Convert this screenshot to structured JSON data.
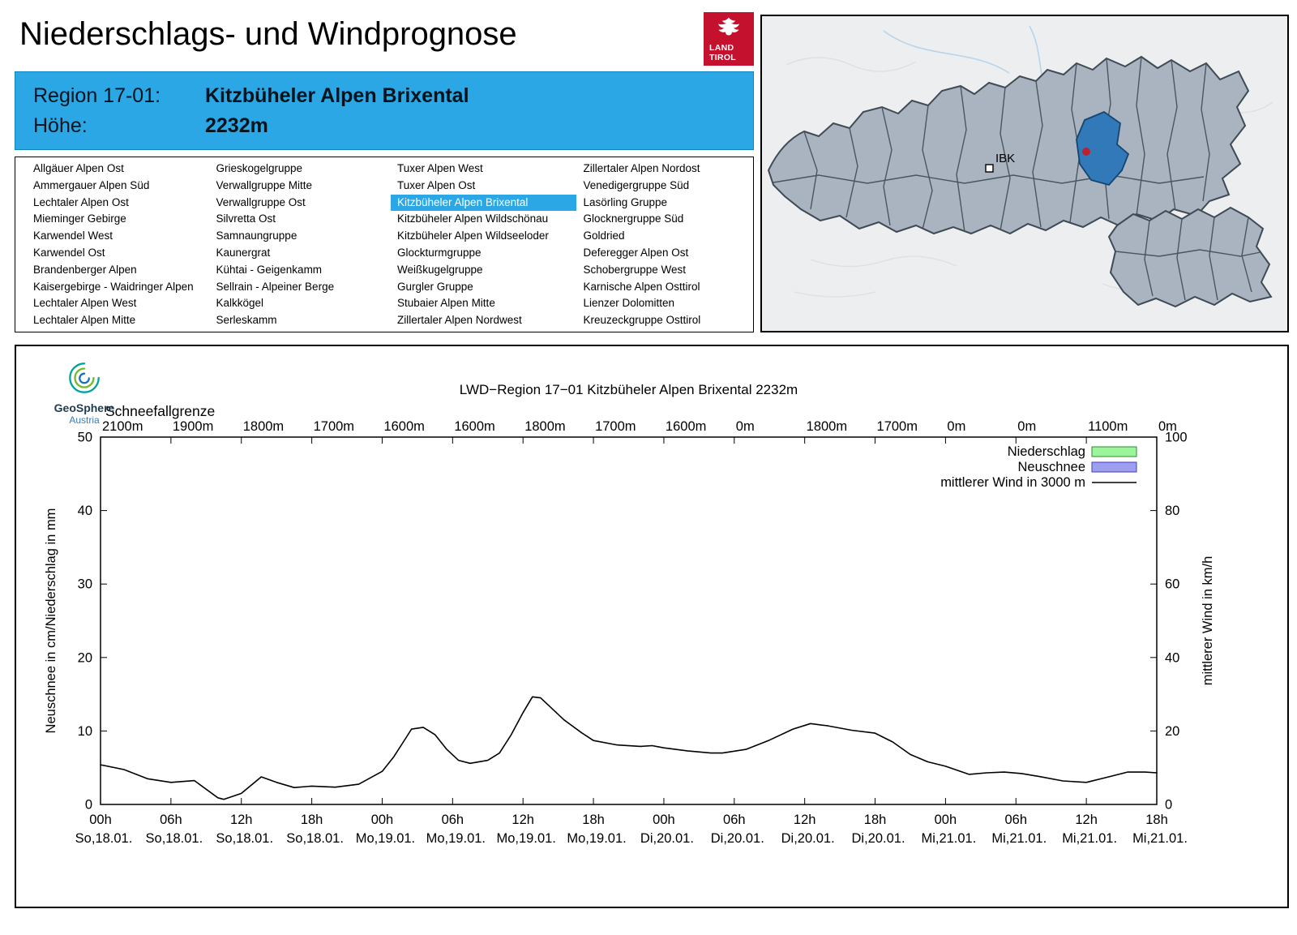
{
  "page": {
    "title": "Niederschlags- und Windprognose"
  },
  "brand": {
    "logo_line1": "LAND",
    "logo_line2": "TIROL",
    "logo_color": "#c4112e"
  },
  "region_info": {
    "region_label": "Region 17-01:",
    "region_name": "Kitzbüheler Alpen Brixental",
    "altitude_label": "Höhe:",
    "altitude_value": "2232m",
    "accent_color": "#2aa7e4"
  },
  "region_list": {
    "selected": "Kitzbüheler Alpen Brixental",
    "columns": [
      [
        "Allgäuer Alpen Ost",
        "Ammergauer Alpen Süd",
        "Lechtaler Alpen Ost",
        "Mieminger Gebirge",
        "Karwendel West",
        "Karwendel Ost",
        "Brandenberger Alpen",
        "Kaisergebirge - Waidringer Alpen",
        "Lechtaler Alpen West",
        "Lechtaler Alpen Mitte"
      ],
      [
        "Grieskogelgruppe",
        "Verwallgruppe Mitte",
        "Verwallgruppe Ost",
        "Silvretta Ost",
        "Samnaungruppe",
        "Kaunergrat",
        "Kühtai - Geigenkamm",
        "Sellrain - Alpeiner Berge",
        "Kalkkögel",
        "Serleskamm"
      ],
      [
        "Tuxer Alpen West",
        "Tuxer Alpen Ost",
        "Kitzbüheler Alpen Brixental",
        "Kitzbüheler Alpen Wildschönau",
        "Kitzbüheler Alpen Wildseeloder",
        "Glockturmgruppe",
        "Weißkugelgruppe",
        "Gurgler Gruppe",
        "Stubaier Alpen Mitte",
        "Zillertaler Alpen Nordwest"
      ],
      [
        "Zillertaler Alpen Nordost",
        "Venedigergruppe Süd",
        "Lasörling Gruppe",
        "Glocknergruppe Süd",
        "Goldried",
        "Deferegger Alpen Ost",
        "Schobergruppe West",
        "Karnische Alpen Osttirol",
        "Lienzer Dolomitten",
        "Kreuzeckgruppe Osttirol"
      ]
    ]
  },
  "map": {
    "marker_label": "IBK",
    "selected_region_color": "#3179b8",
    "marker_dot_color": "#bb2230"
  },
  "geosphere": {
    "name": "GeoSphere",
    "country": "Austria"
  },
  "chart_data": {
    "type": "line",
    "title": "LWD−Region 17−01 Kitzbüheler Alpen Brixental 2232m",
    "snowline_label": "Schneefallgrenze",
    "snowline_values": [
      "2100m",
      "1900m",
      "1800m",
      "1700m",
      "1600m",
      "1600m",
      "1800m",
      "1700m",
      "1600m",
      "0m",
      "1800m",
      "1700m",
      "0m",
      "0m",
      "1100m",
      "0m"
    ],
    "ylabel_left": "Neuschnee in cm/Niederschlag in mm",
    "ylabel_right": "mittlerer Wind in km/h",
    "ylim_left": [
      0,
      50
    ],
    "ylim_right": [
      0,
      100
    ],
    "yticks_left": [
      0,
      10,
      20,
      30,
      40,
      50
    ],
    "yticks_right": [
      0,
      20,
      40,
      60,
      80,
      100
    ],
    "xlim_hours": [
      0,
      90
    ],
    "x_ticks": [
      {
        "hour": "00h",
        "date": "So,18.01."
      },
      {
        "hour": "06h",
        "date": "So,18.01."
      },
      {
        "hour": "12h",
        "date": "So,18.01."
      },
      {
        "hour": "18h",
        "date": "So,18.01."
      },
      {
        "hour": "00h",
        "date": "Mo,19.01."
      },
      {
        "hour": "06h",
        "date": "Mo,19.01."
      },
      {
        "hour": "12h",
        "date": "Mo,19.01."
      },
      {
        "hour": "18h",
        "date": "Mo,19.01."
      },
      {
        "hour": "00h",
        "date": "Di,20.01."
      },
      {
        "hour": "06h",
        "date": "Di,20.01."
      },
      {
        "hour": "12h",
        "date": "Di,20.01."
      },
      {
        "hour": "18h",
        "date": "Di,20.01."
      },
      {
        "hour": "00h",
        "date": "Mi,21.01."
      },
      {
        "hour": "06h",
        "date": "Mi,21.01."
      },
      {
        "hour": "12h",
        "date": "Mi,21.01."
      },
      {
        "hour": "18h",
        "date": "Mi,21.01."
      }
    ],
    "legend_position": "top-right",
    "grid": false,
    "legend": [
      {
        "label": "Niederschlag",
        "swatch": "box",
        "fill": "#9cf59c",
        "stroke": "#2e8b2e"
      },
      {
        "label": "Neuschnee",
        "swatch": "box",
        "fill": "#9f9ff0",
        "stroke": "#3c3cc8"
      },
      {
        "label": "mittlerer Wind in 3000 m",
        "swatch": "line",
        "stroke": "#000000"
      }
    ],
    "series": [
      {
        "name": "Niederschlag",
        "type": "bar",
        "axis": "left",
        "unit": "mm",
        "note": "no visible bars over entire period (0 mm)"
      },
      {
        "name": "Neuschnee",
        "type": "bar",
        "axis": "left",
        "unit": "cm",
        "note": "no visible bars over entire period (0 cm)"
      },
      {
        "name": "mittlerer Wind in 3000 m",
        "type": "line",
        "axis": "right",
        "unit": "km/h",
        "x_hours": [
          0,
          2,
          4,
          6,
          8,
          10,
          10.5,
          12,
          13.7,
          15,
          16.5,
          18,
          20,
          22,
          24,
          25,
          26,
          26.5,
          27.5,
          28.5,
          29.5,
          30.5,
          31.5,
          33,
          34,
          35,
          36,
          36.8,
          37.5,
          38.5,
          39.5,
          41,
          42,
          44,
          46,
          47,
          48,
          50,
          52,
          53,
          55,
          57,
          59,
          60.5,
          62,
          64,
          66,
          67.5,
          69,
          70.5,
          72,
          74,
          75.5,
          77,
          78.5,
          80,
          82,
          84,
          86,
          87.5,
          89,
          90
        ],
        "values_kmh": [
          10.8,
          9.5,
          7,
          6,
          6.5,
          1.8,
          1.4,
          3,
          7.5,
          6,
          4.6,
          5,
          4.7,
          5.5,
          9,
          13,
          18,
          20.5,
          21,
          19,
          15,
          12,
          11.2,
          12,
          14,
          19,
          25,
          29.3,
          29,
          26,
          23,
          19.5,
          17.4,
          16.2,
          15.8,
          16,
          15.4,
          14.6,
          14,
          14,
          15,
          17.5,
          20.5,
          22,
          21.4,
          20.2,
          19.4,
          17,
          13.6,
          11.6,
          10.4,
          8.2,
          8.6,
          8.8,
          8.4,
          7.6,
          6.4,
          6,
          7.6,
          8.8,
          8.8,
          8.6
        ]
      }
    ]
  }
}
